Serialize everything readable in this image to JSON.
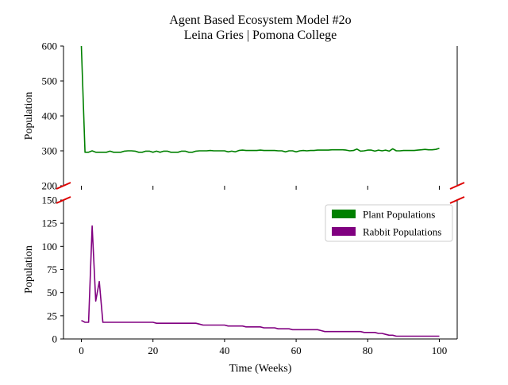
{
  "colors": {
    "plant": "#008000",
    "rabbit": "#800080",
    "break_mark": "#dd0000",
    "axis": "#000000"
  },
  "chart_data": {
    "type": "line",
    "layout": "broken-y-axis (two vertically stacked panels sharing x)",
    "title_line1": "Agent Based Ecosystem Model #2o",
    "title_line2": "Leina Gries | Pomona College",
    "xlabel": "Time (Weeks)",
    "xlim": [
      -5,
      105
    ],
    "x_ticks": [
      0,
      20,
      40,
      60,
      80,
      100
    ],
    "legend_position": "top-right of lower panel",
    "top_panel": {
      "ylabel": "Population",
      "ylim": [
        200,
        600
      ],
      "y_ticks": [
        200,
        300,
        400,
        500,
        600
      ]
    },
    "bottom_panel": {
      "ylabel": "Population",
      "ylim": [
        0,
        150
      ],
      "y_ticks": [
        0,
        25,
        50,
        75,
        100,
        125,
        150
      ]
    },
    "x": [
      0,
      1,
      2,
      3,
      4,
      5,
      6,
      7,
      8,
      9,
      10,
      11,
      12,
      13,
      14,
      15,
      16,
      17,
      18,
      19,
      20,
      21,
      22,
      23,
      24,
      25,
      26,
      27,
      28,
      29,
      30,
      31,
      32,
      33,
      34,
      35,
      36,
      37,
      38,
      39,
      40,
      41,
      42,
      43,
      44,
      45,
      46,
      47,
      48,
      49,
      50,
      51,
      52,
      53,
      54,
      55,
      56,
      57,
      58,
      59,
      60,
      61,
      62,
      63,
      64,
      65,
      66,
      67,
      68,
      69,
      70,
      71,
      72,
      73,
      74,
      75,
      76,
      77,
      78,
      79,
      80,
      81,
      82,
      83,
      84,
      85,
      86,
      87,
      88,
      89,
      90,
      91,
      92,
      93,
      94,
      95,
      96,
      97,
      98,
      99,
      100
    ],
    "series": [
      {
        "name": "Plant Populations",
        "panel": "top",
        "values": [
          600,
          296,
          296,
          300,
          296,
          296,
          296,
          296,
          299,
          296,
          296,
          296,
          299,
          300,
          300,
          299,
          296,
          296,
          299,
          299,
          296,
          299,
          296,
          299,
          299,
          296,
          296,
          296,
          299,
          299,
          296,
          296,
          299,
          300,
          300,
          300,
          301,
          300,
          300,
          300,
          300,
          297,
          299,
          297,
          301,
          302,
          301,
          301,
          301,
          301,
          302,
          301,
          301,
          301,
          301,
          300,
          300,
          297,
          300,
          300,
          297,
          300,
          301,
          300,
          301,
          301,
          302,
          302,
          302,
          302,
          303,
          303,
          303,
          303,
          302,
          300,
          301,
          305,
          299,
          300,
          302,
          302,
          299,
          302,
          300,
          302,
          299,
          306,
          300,
          300,
          301,
          301,
          301,
          301,
          302,
          303,
          304,
          303,
          303,
          304,
          307
        ]
      },
      {
        "name": "Rabbit Populations",
        "panel": "bottom",
        "values": [
          20,
          18,
          18,
          122,
          41,
          62,
          18,
          18,
          18,
          18,
          18,
          18,
          18,
          18,
          18,
          18,
          18,
          18,
          18,
          18,
          18,
          17,
          17,
          17,
          17,
          17,
          17,
          17,
          17,
          17,
          17,
          17,
          17,
          16,
          15,
          15,
          15,
          15,
          15,
          15,
          15,
          14,
          14,
          14,
          14,
          14,
          13,
          13,
          13,
          13,
          13,
          12,
          12,
          12,
          12,
          11,
          11,
          11,
          11,
          10,
          10,
          10,
          10,
          10,
          10,
          10,
          10,
          9,
          8,
          8,
          8,
          8,
          8,
          8,
          8,
          8,
          8,
          8,
          8,
          7,
          7,
          7,
          7,
          6,
          6,
          5,
          4,
          4,
          3,
          3,
          3,
          3,
          3,
          3,
          3,
          3,
          3,
          3,
          3,
          3,
          3
        ]
      }
    ],
    "legend": [
      "Plant Populations",
      "Rabbit Populations"
    ]
  }
}
